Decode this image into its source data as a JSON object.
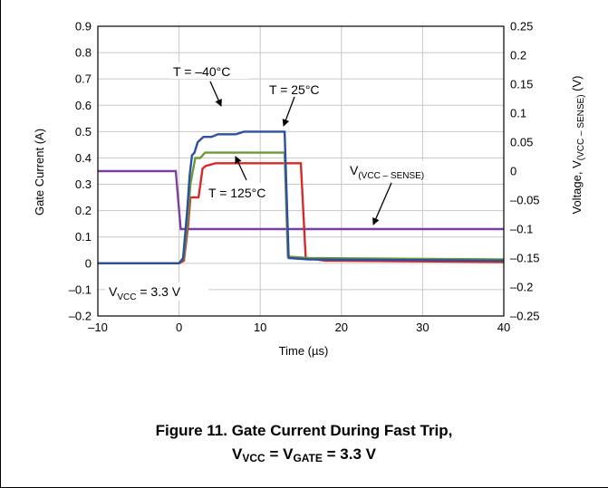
{
  "chart_data": {
    "type": "line",
    "xlabel": "Time (µs)",
    "ylabel_left": "Gate Current (A)",
    "ylabel_right_parts": [
      "Voltage, V",
      "(VCC – SENSE)",
      " (V)"
    ],
    "xlim": [
      -10,
      40
    ],
    "ylim_left": [
      -0.2,
      0.9
    ],
    "ylim_right": [
      -0.25,
      0.25
    ],
    "x_ticks": [
      "–10",
      "0",
      "10",
      "20",
      "30",
      "40"
    ],
    "x_tick_values": [
      -10,
      0,
      10,
      20,
      30,
      40
    ],
    "y_left_ticks": [
      "0.9",
      "0.8",
      "0.7",
      "0.6",
      "0.5",
      "0.4",
      "0.3",
      "0.2",
      "0.1",
      "0",
      "–0.1",
      "–0.2"
    ],
    "y_left_tick_values": [
      0.9,
      0.8,
      0.7,
      0.6,
      0.5,
      0.4,
      0.3,
      0.2,
      0.1,
      0,
      -0.1,
      -0.2
    ],
    "y_right_ticks": [
      "0.25",
      "0.2",
      "0.15",
      "0.1",
      "0.05",
      "0",
      "–0.05",
      "–0.1",
      "–0.15",
      "–0.2",
      "–0.25"
    ],
    "y_right_tick_values": [
      0.25,
      0.2,
      0.15,
      0.1,
      0.05,
      0,
      -0.05,
      -0.1,
      -0.15,
      -0.2,
      -0.25
    ],
    "grid": true,
    "series": [
      {
        "name": "T = –40°C",
        "color": "#2e4e9e",
        "axis": "left",
        "x": [
          -10,
          0,
          0.5,
          1.0,
          1.3,
          1.6,
          1.9,
          2.3,
          3,
          4,
          4.8,
          7,
          8,
          13.0,
          13.5,
          16,
          40
        ],
        "y": [
          0,
          0,
          0.02,
          0.2,
          0.33,
          0.41,
          0.42,
          0.46,
          0.48,
          0.48,
          0.49,
          0.49,
          0.5,
          0.5,
          0.02,
          0.015,
          0.01
        ]
      },
      {
        "name": "T = 25°C",
        "color": "#6a9a3a",
        "axis": "left",
        "x": [
          -10,
          0,
          0.6,
          1.1,
          1.4,
          2.0,
          2.6,
          3.2,
          13.0,
          13.4,
          16,
          40
        ],
        "y": [
          0,
          0,
          0.02,
          0.18,
          0.3,
          0.4,
          0.4,
          0.42,
          0.42,
          0.025,
          0.02,
          0.015
        ]
      },
      {
        "name": "T = 125°C",
        "color": "#d62a2a",
        "axis": "left",
        "x": [
          -10,
          0,
          0.6,
          1.1,
          1.4,
          2.4,
          2.9,
          3.3,
          4.5,
          15.0,
          15.6,
          18,
          40
        ],
        "y": [
          0,
          0,
          0.01,
          0.14,
          0.25,
          0.25,
          0.36,
          0.37,
          0.38,
          0.38,
          0.02,
          0.01,
          0.005
        ]
      },
      {
        "name": "V(VCC – SENSE)",
        "color": "#7b3fa0",
        "axis": "right",
        "x": [
          -10,
          -0.4,
          0.2,
          40
        ],
        "y": [
          0,
          0,
          -0.1,
          -0.1
        ]
      }
    ],
    "annotations": [
      {
        "text": "T = –40°C"
      },
      {
        "text": "T = 25°C"
      },
      {
        "text": "T = 125°C"
      },
      {
        "text_main": "V",
        "text_sub": "(VCC – SENSE)"
      },
      {
        "text_main": "V",
        "text_sub": "VCC",
        "text_tail": " = 3.3 V"
      }
    ],
    "caption": {
      "line1": "Figure 11. Gate Current During Fast Trip,",
      "line2_parts": [
        "V",
        "VCC",
        " = V",
        "GATE",
        " = 3.3 V"
      ]
    }
  }
}
